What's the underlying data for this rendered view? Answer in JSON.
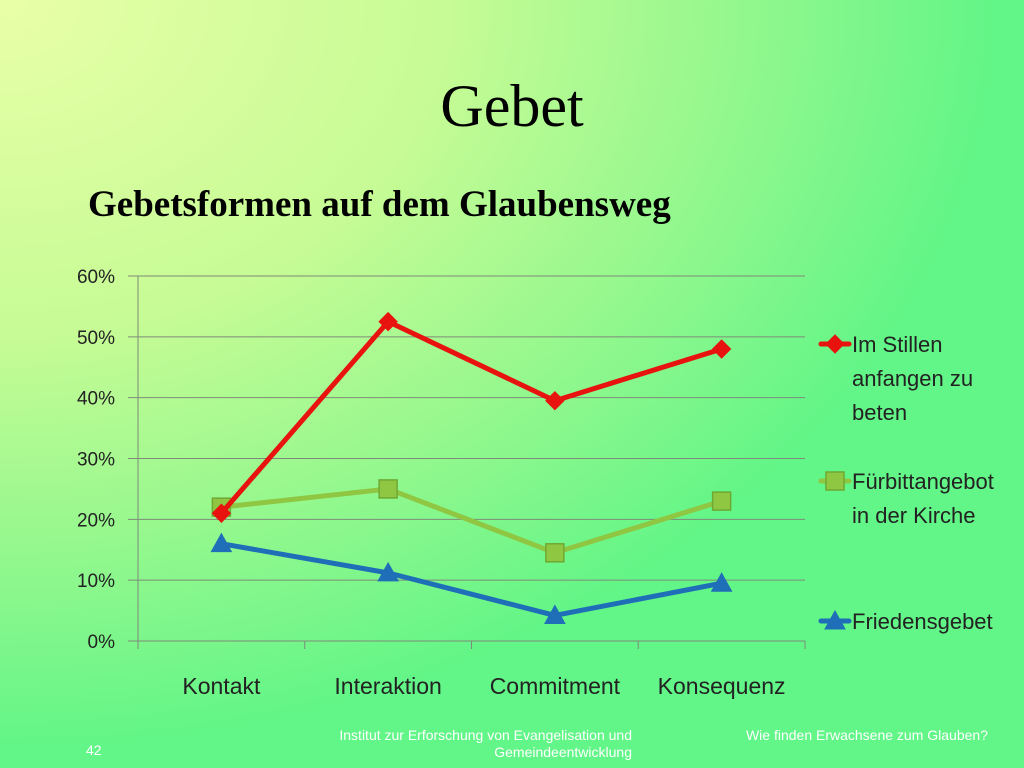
{
  "slide": {
    "title": "Gebet",
    "subtitle": "Gebetsformen auf dem Glaubensweg",
    "slide_number": "42",
    "footer_center": "Institut zur Erforschung von Evangelisation und Gemeindeentwicklung",
    "footer_right": "Wie finden Erwachsene zum Glauben?"
  },
  "chart_data": {
    "type": "line",
    "categories": [
      "Kontakt",
      "Interaktion",
      "Commitment",
      "Konsequenz"
    ],
    "y_ticks": [
      "0%",
      "10%",
      "20%",
      "30%",
      "40%",
      "50%",
      "60%"
    ],
    "ylim": [
      0,
      60
    ],
    "grid": true,
    "legend_position": "right",
    "series": [
      {
        "name_lines": [
          "Im Stillen",
          "anfangen zu",
          "beten"
        ],
        "name": "Im Stillen anfangen zu beten",
        "values": [
          21,
          52.5,
          39.5,
          48
        ],
        "color": "#e8120e",
        "marker": "diamond"
      },
      {
        "name_lines": [
          "Fürbittangebot",
          "in der Kirche"
        ],
        "name": "Fürbittangebot in der Kirche",
        "values": [
          22,
          25,
          14.5,
          23
        ],
        "color": "#8fc742",
        "marker": "square"
      },
      {
        "name_lines": [
          "Friedensgebet"
        ],
        "name": "Friedensgebet",
        "values": [
          16,
          11.2,
          4.2,
          9.5
        ],
        "color": "#1f6fb8",
        "marker": "triangle"
      }
    ]
  }
}
